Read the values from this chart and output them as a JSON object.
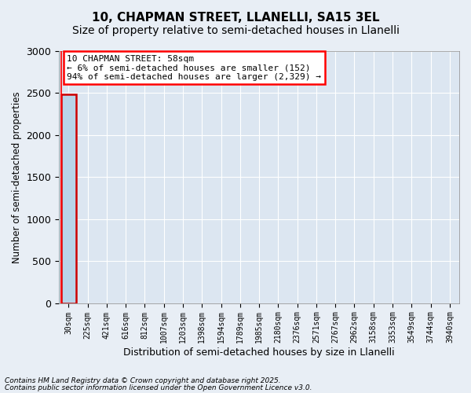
{
  "title_line1": "10, CHAPMAN STREET, LLANELLI, SA15 3EL",
  "title_line2": "Size of property relative to semi-detached houses in Llanelli",
  "xlabel": "Distribution of semi-detached houses by size in Llanelli",
  "ylabel": "Number of semi-detached properties",
  "annotation_title": "10 CHAPMAN STREET: 58sqm",
  "annotation_line2": "← 6% of semi-detached houses are smaller (152)",
  "annotation_line3": "94% of semi-detached houses are larger (2,329) →",
  "footer_line1": "Contains HM Land Registry data © Crown copyright and database right 2025.",
  "footer_line2": "Contains public sector information licensed under the Open Government Licence v3.0.",
  "bin_labels": [
    "30sqm",
    "225sqm",
    "421sqm",
    "616sqm",
    "812sqm",
    "1007sqm",
    "1203sqm",
    "1398sqm",
    "1594sqm",
    "1789sqm",
    "1985sqm",
    "2180sqm",
    "2376sqm",
    "2571sqm",
    "2767sqm",
    "2962sqm",
    "3158sqm",
    "3353sqm",
    "3549sqm",
    "3744sqm",
    "3940sqm"
  ],
  "bar_heights": [
    2481,
    0,
    0,
    0,
    0,
    0,
    0,
    0,
    0,
    0,
    0,
    0,
    0,
    0,
    0,
    0,
    0,
    0,
    0,
    0,
    0
  ],
  "bar_color_normal": "#b8d4e8",
  "bar_edge_color": "#5b9bd5",
  "highlight_bar_index": 0,
  "highlight_edge_color": "#cc0000",
  "ylim": [
    0,
    3000
  ],
  "yticks": [
    0,
    500,
    1000,
    1500,
    2000,
    2500,
    3000
  ],
  "plot_background": "#dce6f1",
  "fig_background": "#e8eef5",
  "grid_color": "#ffffff",
  "title_fontsize": 11,
  "subtitle_fontsize": 10,
  "annotation_fontsize": 8,
  "ylabel_fontsize": 8.5,
  "xlabel_fontsize": 9,
  "tick_fontsize": 7,
  "footer_fontsize": 6.5
}
